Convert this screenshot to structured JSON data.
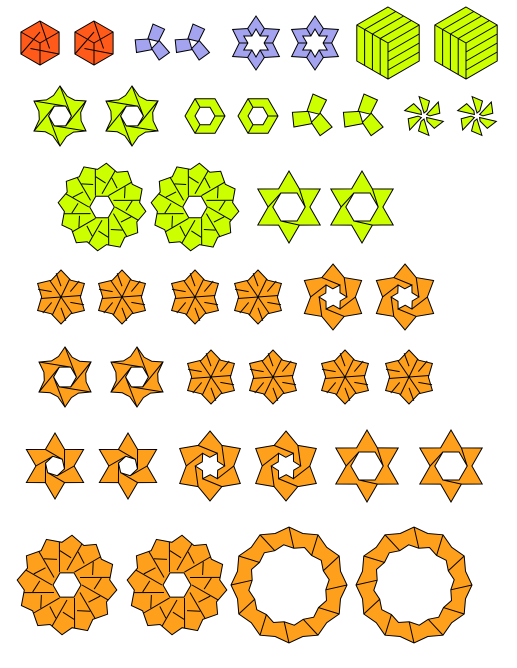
{
  "palette": {
    "red": "#ff5a1a",
    "lavender": "#a3a3f0",
    "lime": "#ccff00",
    "orange": "#ffa01c",
    "stroke": "#000000"
  },
  "rows": [
    {
      "name": "row-1",
      "tiles": [
        {
          "shape": "cube-hexagon",
          "color": "red",
          "icon": "cube-hexagon-icon"
        },
        {
          "shape": "cube-hexagon",
          "color": "red",
          "icon": "cube-hexagon-icon"
        },
        {
          "shape": "small-triskelion",
          "color": "lavender",
          "icon": "triskelion-icon"
        },
        {
          "shape": "small-triskelion",
          "color": "lavender",
          "icon": "triskelion-icon"
        },
        {
          "shape": "hexagram-ring",
          "color": "lavender",
          "icon": "hexagram-ring-icon"
        },
        {
          "shape": "hexagram-ring",
          "color": "lavender",
          "icon": "hexagram-ring-icon"
        },
        {
          "shape": "striped-cube-hexagon",
          "color": "lime",
          "icon": "striped-cube-icon"
        },
        {
          "shape": "striped-cube-hexagon",
          "color": "lime",
          "icon": "striped-cube-icon"
        }
      ]
    },
    {
      "name": "row-2",
      "tiles": [
        {
          "shape": "pinwheel-ring",
          "color": "lime",
          "icon": "pinwheel-ring-icon"
        },
        {
          "shape": "pinwheel-ring",
          "color": "lime",
          "icon": "pinwheel-ring-icon"
        },
        {
          "shape": "hexagon-ring",
          "color": "lime",
          "icon": "hexagon-ring-icon"
        },
        {
          "shape": "hexagon-ring",
          "color": "lime",
          "icon": "hexagon-ring-icon"
        },
        {
          "shape": "triskelion",
          "color": "lime",
          "icon": "triskelion-icon"
        },
        {
          "shape": "triskelion",
          "color": "lime",
          "icon": "triskelion-icon"
        },
        {
          "shape": "pinwheel-star",
          "color": "lime",
          "icon": "pinwheel-star-icon"
        },
        {
          "shape": "pinwheel-star",
          "color": "lime",
          "icon": "pinwheel-star-icon"
        }
      ]
    },
    {
      "name": "row-3",
      "tiles": [
        {
          "shape": "large-rosette",
          "color": "lime",
          "icon": "rosette-icon"
        },
        {
          "shape": "large-rosette",
          "color": "lime",
          "icon": "rosette-icon"
        },
        {
          "shape": "hexagram-frame",
          "color": "lime",
          "icon": "hexagram-frame-icon"
        },
        {
          "shape": "hexagram-frame",
          "color": "lime",
          "icon": "hexagram-frame-icon"
        }
      ]
    },
    {
      "name": "row-4",
      "tiles": [
        {
          "shape": "solid-pinwheel",
          "color": "orange",
          "icon": "pinwheel-icon"
        },
        {
          "shape": "solid-pinwheel",
          "color": "orange",
          "icon": "pinwheel-icon"
        },
        {
          "shape": "solid-pinwheel",
          "color": "orange",
          "icon": "pinwheel-icon"
        },
        {
          "shape": "solid-pinwheel",
          "color": "orange",
          "icon": "pinwheel-icon"
        },
        {
          "shape": "spiky-ring",
          "color": "orange",
          "icon": "spiky-ring-icon"
        },
        {
          "shape": "spiky-ring",
          "color": "orange",
          "icon": "spiky-ring-icon"
        }
      ]
    },
    {
      "name": "row-5",
      "tiles": [
        {
          "shape": "pinwheel-ring",
          "color": "orange",
          "icon": "pinwheel-ring-icon"
        },
        {
          "shape": "pinwheel-ring",
          "color": "orange",
          "icon": "pinwheel-ring-icon"
        },
        {
          "shape": "solid-pinwheel",
          "color": "orange",
          "icon": "pinwheel-icon"
        },
        {
          "shape": "solid-pinwheel",
          "color": "orange",
          "icon": "pinwheel-icon"
        },
        {
          "shape": "solid-pinwheel",
          "color": "orange",
          "icon": "pinwheel-icon"
        },
        {
          "shape": "solid-pinwheel",
          "color": "orange",
          "icon": "pinwheel-icon"
        }
      ]
    },
    {
      "name": "row-6",
      "tiles": [
        {
          "shape": "hexagram-spiral",
          "color": "orange",
          "icon": "hexagram-spiral-icon"
        },
        {
          "shape": "hexagram-spiral",
          "color": "orange",
          "icon": "hexagram-spiral-icon"
        },
        {
          "shape": "spiky-ring",
          "color": "orange",
          "icon": "spiky-ring-icon"
        },
        {
          "shape": "spiky-ring",
          "color": "orange",
          "icon": "spiky-ring-icon"
        },
        {
          "shape": "hexagram-frame",
          "color": "orange",
          "icon": "hexagram-frame-icon"
        },
        {
          "shape": "hexagram-frame",
          "color": "orange",
          "icon": "hexagram-frame-icon"
        }
      ]
    },
    {
      "name": "row-7",
      "tiles": [
        {
          "shape": "large-rosette",
          "color": "orange",
          "icon": "rosette-icon"
        },
        {
          "shape": "large-rosette",
          "color": "orange",
          "icon": "rosette-icon"
        },
        {
          "shape": "zigzag-ring",
          "color": "orange",
          "icon": "zigzag-ring-icon"
        },
        {
          "shape": "zigzag-ring",
          "color": "orange",
          "icon": "zigzag-ring-icon"
        }
      ]
    }
  ]
}
